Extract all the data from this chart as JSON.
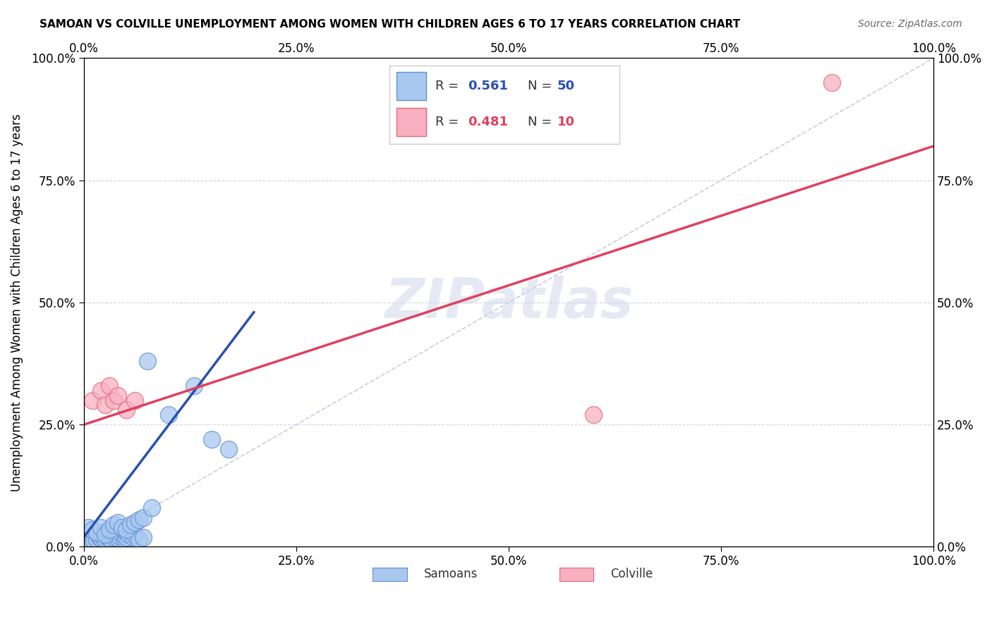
{
  "title": "SAMOAN VS COLVILLE UNEMPLOYMENT AMONG WOMEN WITH CHILDREN AGES 6 TO 17 YEARS CORRELATION CHART",
  "source": "Source: ZipAtlas.com",
  "ylabel": "Unemployment Among Women with Children Ages 6 to 17 years",
  "xlim": [
    0,
    1.0
  ],
  "ylim": [
    0,
    1.0
  ],
  "xticks": [
    0.0,
    0.25,
    0.5,
    0.75,
    1.0
  ],
  "yticks": [
    0.0,
    0.25,
    0.5,
    0.75,
    1.0
  ],
  "xticklabels": [
    "0.0%",
    "25.0%",
    "50.0%",
    "75.0%",
    "100.0%"
  ],
  "yticklabels": [
    "0.0%",
    "25.0%",
    "50.0%",
    "75.0%",
    "100.0%"
  ],
  "samoans_color": "#a8c8f0",
  "colville_color": "#f8b0c0",
  "samoans_edge_color": "#6090d0",
  "colville_edge_color": "#e06880",
  "trend_blue": "#2850b0",
  "trend_pink": "#e04060",
  "diag_color": "#c8cce0",
  "R_samoans": 0.561,
  "N_samoans": 50,
  "R_colville": 0.481,
  "N_colville": 10,
  "background": "#ffffff",
  "samoans_x": [
    0.005,
    0.008,
    0.01,
    0.012,
    0.015,
    0.018,
    0.02,
    0.02,
    0.022,
    0.025,
    0.025,
    0.028,
    0.03,
    0.03,
    0.032,
    0.035,
    0.038,
    0.04,
    0.04,
    0.042,
    0.045,
    0.048,
    0.05,
    0.05,
    0.052,
    0.055,
    0.058,
    0.06,
    0.065,
    0.07,
    0.005,
    0.01,
    0.015,
    0.02,
    0.025,
    0.03,
    0.035,
    0.04,
    0.045,
    0.05,
    0.055,
    0.06,
    0.065,
    0.07,
    0.075,
    0.08,
    0.1,
    0.13,
    0.15,
    0.17
  ],
  "samoans_y": [
    0.005,
    0.01,
    0.008,
    0.012,
    0.015,
    0.02,
    0.018,
    0.025,
    0.022,
    0.015,
    0.03,
    0.02,
    0.025,
    0.035,
    0.015,
    0.02,
    0.025,
    0.03,
    0.018,
    0.022,
    0.025,
    0.015,
    0.02,
    0.03,
    0.025,
    0.035,
    0.02,
    0.025,
    0.015,
    0.02,
    0.04,
    0.035,
    0.03,
    0.04,
    0.025,
    0.035,
    0.045,
    0.05,
    0.04,
    0.035,
    0.045,
    0.05,
    0.055,
    0.06,
    0.38,
    0.08,
    0.27,
    0.33,
    0.22,
    0.2
  ],
  "colville_x": [
    0.01,
    0.02,
    0.025,
    0.03,
    0.035,
    0.04,
    0.05,
    0.06,
    0.6,
    0.88
  ],
  "colville_y": [
    0.3,
    0.32,
    0.29,
    0.33,
    0.3,
    0.31,
    0.28,
    0.3,
    0.27,
    0.95
  ],
  "blue_trend_x0": 0.0,
  "blue_trend_y0": 0.02,
  "blue_trend_x1": 0.2,
  "blue_trend_y1": 0.48,
  "pink_trend_x0": 0.0,
  "pink_trend_y0": 0.25,
  "pink_trend_x1": 1.0,
  "pink_trend_y1": 0.82
}
